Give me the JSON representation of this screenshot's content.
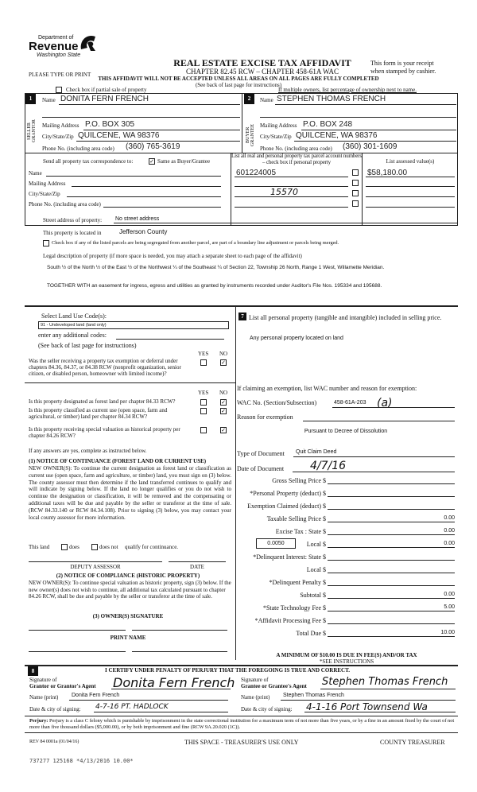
{
  "header": {
    "dept": "Department of",
    "revenue": "Revenue",
    "state": "Washington State",
    "title": "REAL ESTATE EXCISE TAX AFFIDAVIT",
    "chapter": "CHAPTER 82.45 RCW – CHAPTER 458-61A WAC",
    "please": "PLEASE TYPE OR PRINT",
    "receipt1": "This form is your receipt",
    "receipt2": "when stamped by cashier.",
    "warning": "THIS AFFIDAVIT WILL NOT BE ACCEPTED UNLESS ALL AREAS ON ALL PAGES ARE FULLY COMPLETED",
    "see_back": "(See back of last page for instructions)",
    "partial_label": "Check box if partial sale of property",
    "multiple_owners": "If multiple owners, list percentage of ownership next to name."
  },
  "seller": {
    "num": "1",
    "side": "SELLER GRANTOR",
    "name_label": "Name",
    "name": "DONITA FERN FRENCH",
    "mail_label": "Mailing Address",
    "mail": "P.O. BOX 305",
    "city_label": "City/State/Zip",
    "city": "QUILCENE, WA  98376",
    "phone_label": "Phone No. (including area code)",
    "phone": "(360) 765-3619"
  },
  "buyer": {
    "num": "2",
    "side": "BUYER GRANTEE",
    "name_label": "Name",
    "name": "STEPHEN THOMAS FRENCH",
    "mail_label": "Mailing Address",
    "mail": "P.O. BOX 248",
    "city_label": "City/State/Zip",
    "city": "QUILCENE, WA  98376",
    "phone_label": "Phone No. (including area code)",
    "phone": "(360) 301-1609"
  },
  "correspondence": {
    "label": "Send all property tax correspondence to:",
    "same_label": "Same as Buyer/Grantee",
    "same_checked": true,
    "name": "Name",
    "mail": "Mailing Address",
    "city": "City/State/Zip",
    "phone": "Phone No. (including area code)"
  },
  "parcels": {
    "header": "List all real and personal property tax parcel account numbers – check box if personal property",
    "assessed_header": "List assessed value(s)",
    "rows": [
      {
        "parcel": "601224005",
        "value": "$58,180.00"
      },
      {
        "parcel": "",
        "value": ""
      },
      {
        "parcel": "15570",
        "value": ""
      },
      {
        "parcel": "",
        "value": ""
      }
    ]
  },
  "property": {
    "street_label": "Street address of property:",
    "street": "No street address",
    "located_label": "This property is located in",
    "located": "Jefferson County",
    "segregated_label": "Check box if any of the listed parcels are being segregated from another parcel, are part of a boundary line adjustment or parcels being merged.",
    "legal_label": "Legal description of property (if more space is needed, you may attach a separate sheet to each page of the affidavit)",
    "legal1": "South ½ of the North ½ of the East ½ of the Northwest ¼ of the Southeast ¼ of  Section 22, Township 26 North, Range 1 West, Willamette Meridian.",
    "legal2": "TOGETHER WITH an easement for ingress, egress and utilities as granted by  instruments recorded under Auditor's File Nos. 195334 and 195688."
  },
  "landuse": {
    "label": "Select Land Use Code(s):",
    "code": "91 - Undeveloped land (land only)",
    "additional": "enter any additional codes:",
    "see_back": "(See back of last page for instructions)",
    "yes": "YES",
    "no": "NO",
    "q_exempt": "Was the seller receiving a property tax exemption or deferral under chapters 84.36, 84.37, or 84.38 RCW (nonprofit organization, senior citizen, or disabled person, homeowner with limited income)?",
    "q_forest": "Is this property designated as forest land per chapter 84.33 RCW?",
    "q_current": "Is this property classified as current use (open space, farm and agricultural, or timber) land per chapter 84.34 RCW?",
    "q_hist": "Is this property receiving special valuation as historical property per chapter 84.26 RCW?",
    "answers": "NO",
    "if_yes": "If any answers are yes, complete as instructed below.",
    "n1_title": "(1) NOTICE OF CONTINUANCE  (FOREST LAND OR CURRENT USE)",
    "n1_text": "NEW OWNER(S): To continue the current designation as forest land or classification as current use (open space, farm and agriculture, or timber) land, you must sign on (3) below. The county assessor must then determine if the land transferred continues to qualify and will indicate by signing below. If the land no longer qualifies or you do not wish to continue the designation or classification, it will be removed and the compensating or additional taxes will be due and payable by the seller or transferor at the time of sale. (RCW 84.33.140 or RCW 84.34.108). Prior to signing (3) below, you may contact your local county assessor for more information.",
    "this_land": "This land",
    "does": "does",
    "does_not": "does not",
    "qualify": "qualify for continuance.",
    "deputy": "DEPUTY ASSESSOR",
    "date": "DATE",
    "n2_title": "(2) NOTICE OF COMPLIANCE (HISTORIC PROPERTY)",
    "n2_text": "NEW OWNER(S): To continue special valuation as historic property, sign (3) below. If the new owner(s) does not wish to continue, all additional tax calculated pursuant to chapter 84.26 RCW, shall be due and payable by the seller or transferor at the time of sale.",
    "n3_title": "(3)  OWNER(S) SIGNATURE",
    "print_name": "PRINT NAME"
  },
  "section7": {
    "num": "7",
    "label": "List all  personal property (tangible and intangible) included in selling price.",
    "value": "Any personal property located on land",
    "exempt_label": "If claiming an exemption, list WAC number and reason for exemption:",
    "wac_label": "WAC No. (Section/Subsection)",
    "wac": "458-61A-203",
    "wac_hand": "(a)",
    "reason_label": "Reason for exemption",
    "reason": "Pursuant to Decree of Dissolution",
    "type_label": "Type of Document",
    "type": "Quit Claim Deed",
    "date_label": "Date of Document",
    "date": "4/7/16"
  },
  "fees": {
    "rate": "0.0050",
    "rows": [
      {
        "label": "Gross Selling Price",
        "value": ""
      },
      {
        "label": "*Personal Property (deduct)",
        "value": ""
      },
      {
        "label": "Exemption Claimed (deduct)",
        "value": ""
      },
      {
        "label": "Taxable Selling Price",
        "value": "0.00"
      },
      {
        "label": "Excise Tax : State",
        "value": "0.00"
      },
      {
        "label": "Local",
        "value": "0.00"
      },
      {
        "label": "*Delinquent Interest: State",
        "value": ""
      },
      {
        "label": "Local",
        "value": ""
      },
      {
        "label": "*Delinquent Penalty",
        "value": ""
      },
      {
        "label": "Subtotal",
        "value": "0.00"
      },
      {
        "label": "*State Technology Fee",
        "value": "5.00"
      },
      {
        "label": "*Affidavit Processing Fee",
        "value": ""
      },
      {
        "label": "Total Due",
        "value": "10.00"
      }
    ],
    "minimum": "A MINIMUM OF $10.00 IS DUE IN FEE(S) AND/OR TAX",
    "see": "*SEE INSTRUCTIONS"
  },
  "certify": {
    "num": "8",
    "text": "I CERTIFY UNDER PENALTY OF PERJURY THAT THE FOREGOING IS TRUE AND CORRECT.",
    "sig_label_a": "Signature of",
    "grantor_label": "Grantor or Grantor's Agent",
    "grantee_label": "Grantee or Grantee's Agent",
    "grantor_sig": "Donita Fern French",
    "grantee_sig": "Stephen Thomas French",
    "name_label": "Name (print)",
    "grantor_name": "Donita Fern French",
    "grantee_name": "Stephen Thomas French",
    "date_label": "Date & city of signing:",
    "grantor_date": "4-7-16    PT. HADLOCK",
    "grantee_date": "4-1-16  Port Townsend Wa"
  },
  "footer": {
    "perjury_b": "Perjury:",
    "perjury": "Perjury is a class C felony which is punishable by imprisonment in the state correctional institution for a maximum term of not more than five years, or by a fine in an amount fixed by the court of not more than five thousand dollars ($5,000.00), or by both imprisonment and fine (RCW 9A.20.020 (1C)).",
    "rev": "REV 84 0001a (01/04/16)",
    "treasurer_space": "THIS SPACE - TREASURER'S USE ONLY",
    "county_treasurer": "COUNTY TREASURER",
    "stamp": "737277 125168 *4/13/2016 10.00*"
  }
}
